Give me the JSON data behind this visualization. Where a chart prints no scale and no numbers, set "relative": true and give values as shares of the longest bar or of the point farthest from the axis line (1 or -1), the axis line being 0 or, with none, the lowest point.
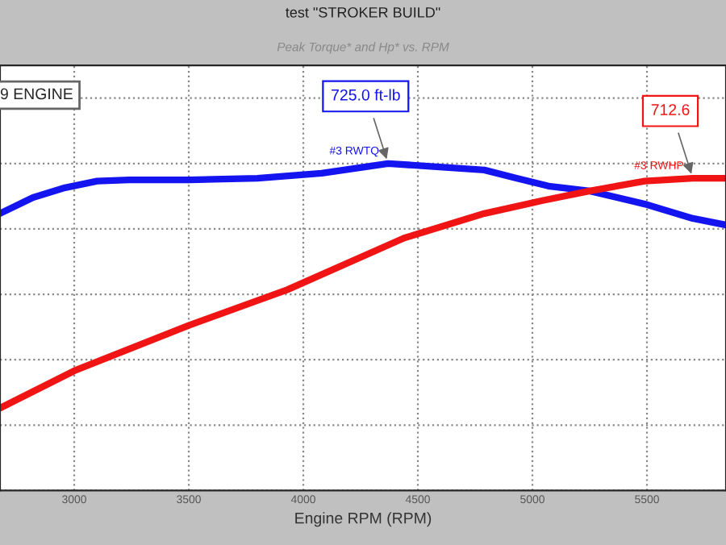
{
  "chart_data": {
    "type": "line",
    "title": "test \"STROKER BUILD\"",
    "subtitle": "Peak Torque* and Hp* vs. RPM",
    "xlabel": "Engine RPM (RPM)",
    "relative": true,
    "xlim": [
      2676,
      5845
    ],
    "xticks": [
      3000,
      3500,
      4000,
      4500,
      5000,
      5500
    ],
    "grid": true,
    "marker": "none",
    "line_style": "solid",
    "series": [
      {
        "name": "#3 RWTQ",
        "color": "#1414f0",
        "x": [
          2676,
          2820,
          2960,
          3100,
          3240,
          3500,
          3800,
          4080,
          4370,
          4790,
          4930,
          5070,
          5250,
          5490,
          5700,
          5845
        ],
        "values": [
          0.847,
          0.896,
          0.926,
          0.946,
          0.95,
          0.95,
          0.955,
          0.97,
          1.0,
          0.98,
          0.955,
          0.931,
          0.916,
          0.876,
          0.832,
          0.812
        ]
      },
      {
        "name": "#3 RWHP",
        "color": "#f01414",
        "x": [
          2676,
          3000,
          3500,
          3930,
          4440,
          4790,
          5040,
          5250,
          5490,
          5700,
          5845
        ],
        "values": [
          0.252,
          0.366,
          0.505,
          0.614,
          0.772,
          0.847,
          0.886,
          0.916,
          0.946,
          0.955,
          0.955
        ]
      }
    ],
    "annotations": [
      "9 ENGINE",
      {
        "text": "725.0 ft-lb",
        "x": 4370,
        "y": 1.0
      },
      {
        "text": "712.6",
        "x": 5700,
        "y": 0.955
      }
    ]
  }
}
